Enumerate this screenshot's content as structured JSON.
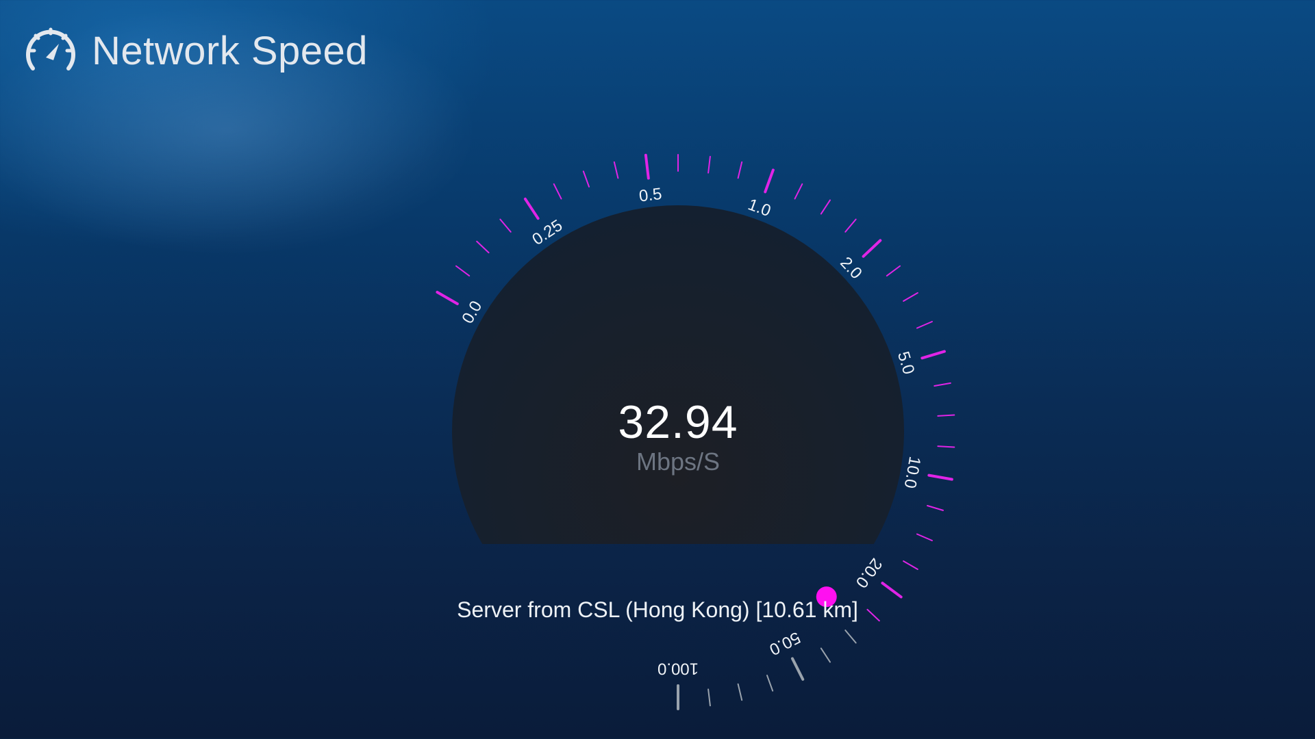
{
  "app": {
    "title": "Network Speed",
    "icon": "speedometer-icon"
  },
  "gauge": {
    "speed_value": "32.94",
    "speed_unit": "Mbps/S",
    "scale_labels": [
      "0.0",
      "0.25",
      "0.5",
      "1.0",
      "2.0",
      "5.0",
      "10.0",
      "20.0",
      "50.0",
      "100.0"
    ],
    "current_speed_mbps": 32.94,
    "colors": {
      "active_tick": "#e024e6",
      "inactive_tick": "#9aa3ad",
      "indicator": "#ff10f0",
      "dial_face": "#151c27"
    }
  },
  "server": {
    "text": "Server from CSL (Hong Kong) [10.61 km]"
  }
}
